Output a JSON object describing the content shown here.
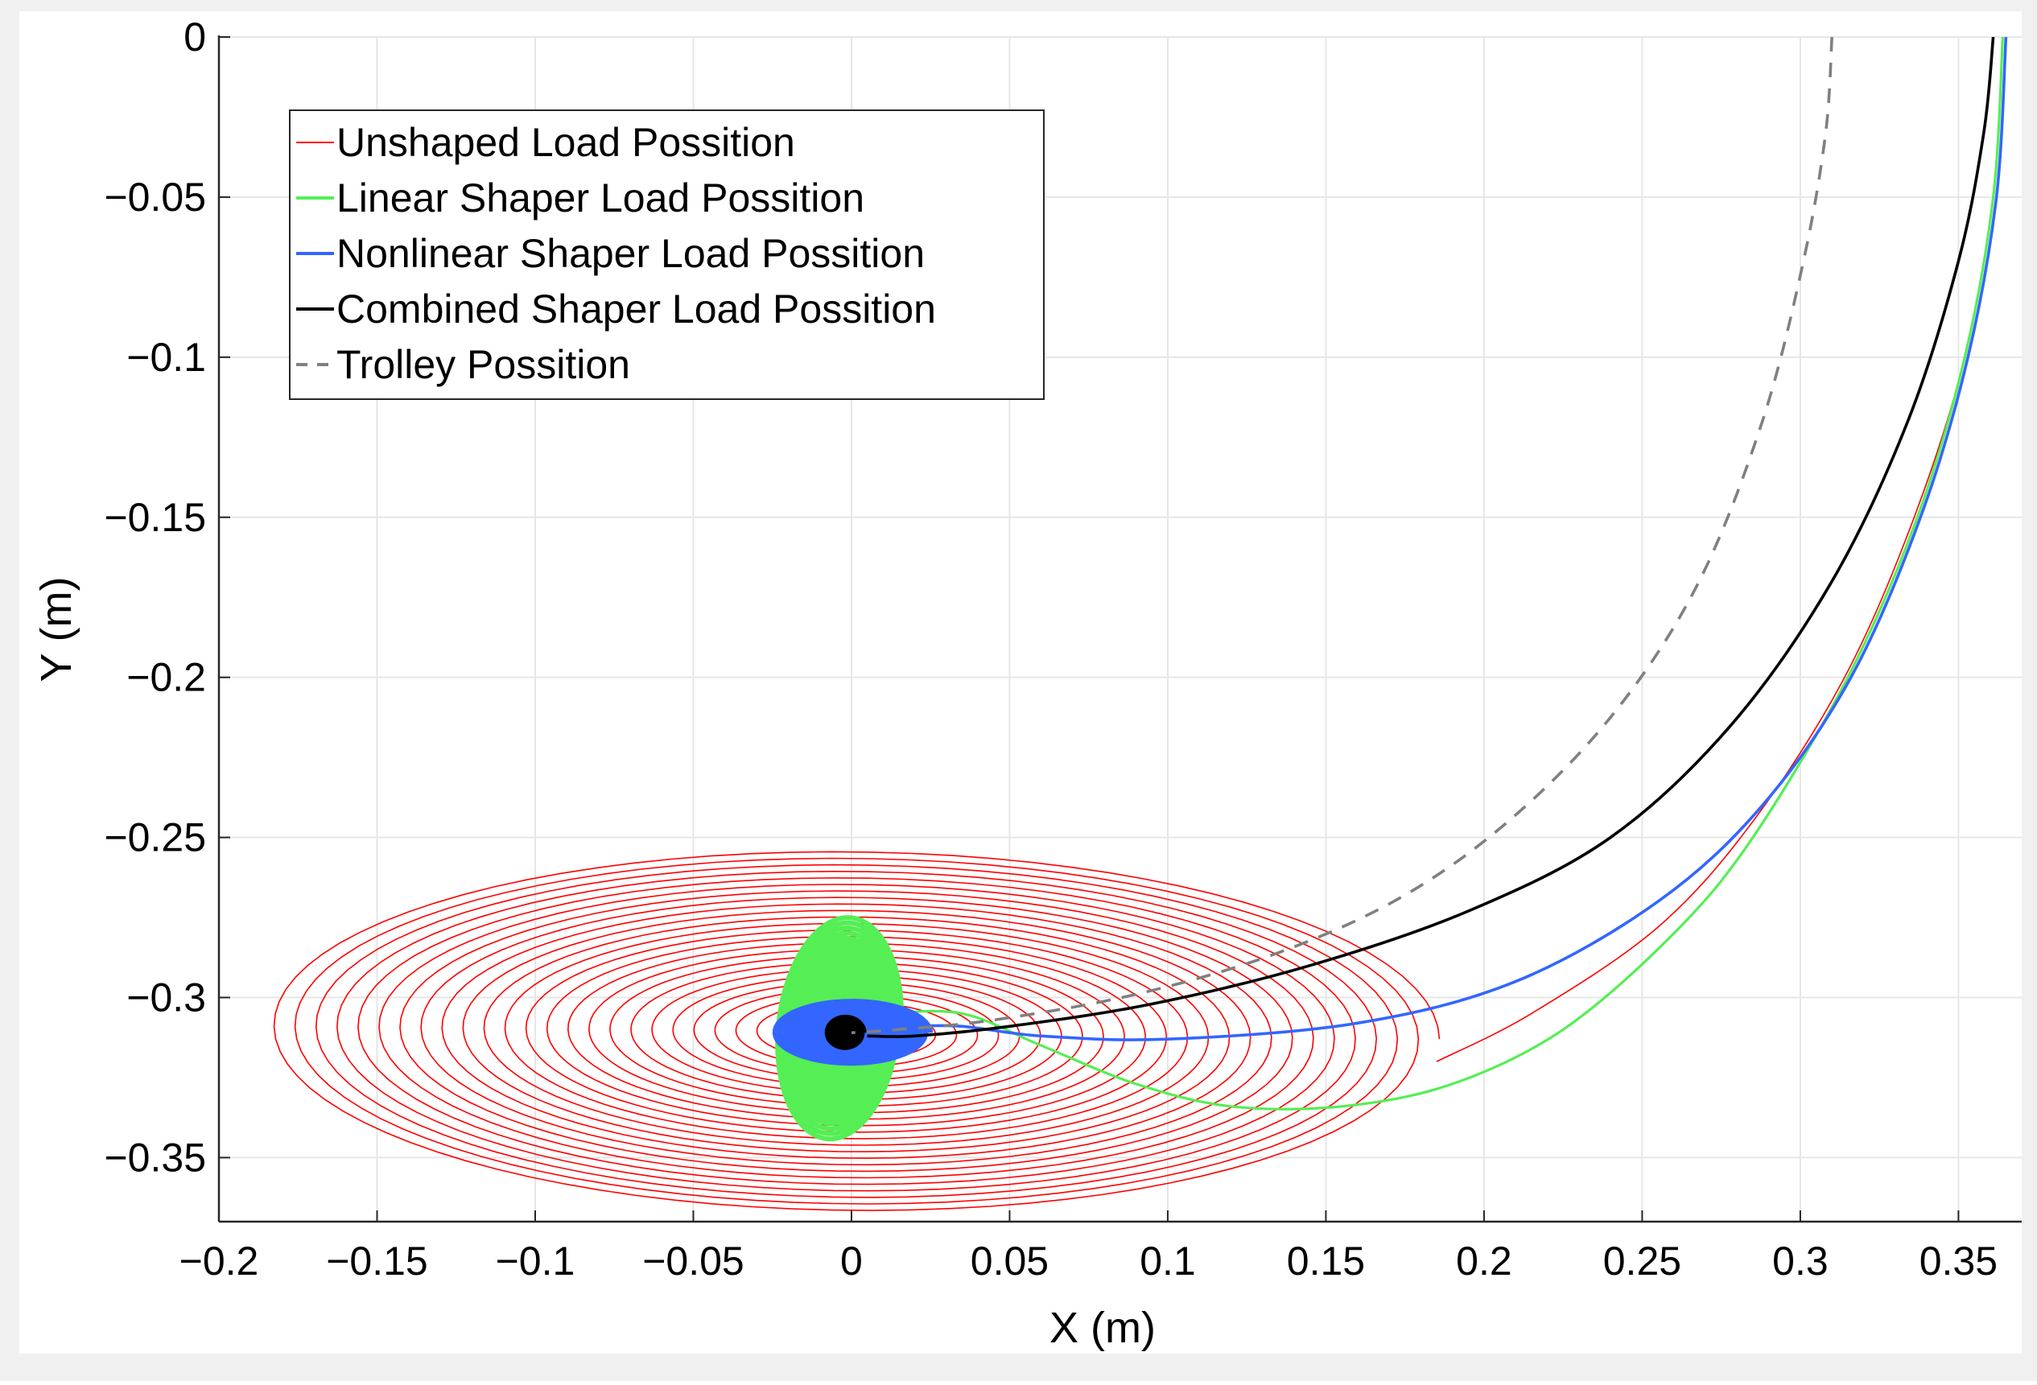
{
  "chart_data": {
    "type": "line",
    "title": "",
    "xlabel": "X (m)",
    "ylabel": "Y (m)",
    "xlim": [
      -0.2,
      0.37
    ],
    "ylim": [
      -0.37,
      0.0
    ],
    "grid": true,
    "legend_position": "top-left",
    "x_ticks": [
      -0.2,
      -0.15,
      -0.1,
      -0.05,
      0,
      0.05,
      0.1,
      0.15,
      0.2,
      0.25,
      0.3,
      0.35
    ],
    "x_tick_labels": [
      "−0.2",
      "−0.15",
      "−0.1",
      "−0.05",
      "0",
      "0.05",
      "0.1",
      "0.15",
      "0.2",
      "0.25",
      "0.3",
      "0.35"
    ],
    "y_ticks": [
      0,
      -0.05,
      -0.1,
      -0.15,
      -0.2,
      -0.25,
      -0.3,
      -0.35
    ],
    "y_tick_labels": [
      "0",
      "−0.05",
      "−0.1",
      "−0.15",
      "−0.2",
      "−0.25",
      "−0.3",
      "−0.35"
    ],
    "series": [
      {
        "name": "Unshaped Load Possition",
        "color": "#ff0000",
        "style": "solid",
        "kind": "spiral",
        "approach_path": [
          [
            0.364,
            0.0
          ],
          [
            0.361,
            -0.05
          ],
          [
            0.352,
            -0.1
          ],
          [
            0.336,
            -0.15
          ],
          [
            0.314,
            -0.2
          ],
          [
            0.285,
            -0.245
          ],
          [
            0.255,
            -0.278
          ],
          [
            0.215,
            -0.305
          ],
          [
            0.185,
            -0.32
          ]
        ],
        "spiral": {
          "center": [
            0.0,
            -0.311
          ],
          "rx_start": 0.186,
          "ry_start": 0.057,
          "loops": 28,
          "tilt_deg": -2
        }
      },
      {
        "name": "Linear Shaper Load Possition",
        "color": "#55ee55",
        "style": "solid",
        "kind": "path_with_oscillation",
        "approach_path": [
          [
            0.364,
            0.0
          ],
          [
            0.361,
            -0.05
          ],
          [
            0.352,
            -0.1
          ],
          [
            0.337,
            -0.15
          ],
          [
            0.315,
            -0.2
          ],
          [
            0.285,
            -0.25
          ],
          [
            0.26,
            -0.28
          ],
          [
            0.225,
            -0.31
          ],
          [
            0.19,
            -0.327
          ],
          [
            0.155,
            -0.334
          ],
          [
            0.12,
            -0.334
          ],
          [
            0.09,
            -0.327
          ],
          [
            0.06,
            -0.315
          ],
          [
            0.035,
            -0.305
          ],
          [
            0.01,
            -0.305
          ]
        ],
        "oscillation": {
          "center": [
            -0.004,
            -0.31
          ],
          "rx_start": 0.02,
          "ry_start": 0.035,
          "loops": 22,
          "tilt_deg": 8
        }
      },
      {
        "name": "Nonlinear Shaper Load Possition",
        "color": "#3366ff",
        "style": "solid",
        "kind": "path_with_oscillation",
        "approach_path": [
          [
            0.365,
            0.0
          ],
          [
            0.362,
            -0.05
          ],
          [
            0.353,
            -0.1
          ],
          [
            0.338,
            -0.15
          ],
          [
            0.316,
            -0.2
          ],
          [
            0.288,
            -0.24
          ],
          [
            0.255,
            -0.27
          ],
          [
            0.21,
            -0.295
          ],
          [
            0.16,
            -0.308
          ],
          [
            0.1,
            -0.313
          ],
          [
            0.06,
            -0.312
          ],
          [
            0.035,
            -0.309
          ],
          [
            0.02,
            -0.309
          ]
        ],
        "oscillation": {
          "center": [
            0.0,
            -0.311
          ],
          "rx_start": 0.025,
          "ry_start": 0.01,
          "loops": 16,
          "tilt_deg": 0
        }
      },
      {
        "name": "Combined Shaper Load Possition",
        "color": "#000000",
        "style": "solid",
        "kind": "path_with_oscillation",
        "approach_path": [
          [
            0.361,
            0.0
          ],
          [
            0.358,
            -0.03
          ],
          [
            0.35,
            -0.07
          ],
          [
            0.334,
            -0.12
          ],
          [
            0.31,
            -0.17
          ],
          [
            0.278,
            -0.215
          ],
          [
            0.24,
            -0.25
          ],
          [
            0.195,
            -0.273
          ],
          [
            0.145,
            -0.29
          ],
          [
            0.095,
            -0.302
          ],
          [
            0.05,
            -0.309
          ],
          [
            0.02,
            -0.312
          ],
          [
            0.005,
            -0.312
          ]
        ],
        "oscillation": {
          "center": [
            -0.002,
            -0.311
          ],
          "rx_start": 0.006,
          "ry_start": 0.005,
          "loops": 10,
          "tilt_deg": 0
        }
      },
      {
        "name": "Trolley Possition",
        "color": "#808080",
        "style": "dashed",
        "kind": "path",
        "approach_path": [
          [
            0.31,
            0.0
          ],
          [
            0.308,
            -0.03
          ],
          [
            0.301,
            -0.07
          ],
          [
            0.288,
            -0.12
          ],
          [
            0.268,
            -0.17
          ],
          [
            0.242,
            -0.21
          ],
          [
            0.21,
            -0.243
          ],
          [
            0.175,
            -0.268
          ],
          [
            0.135,
            -0.286
          ],
          [
            0.09,
            -0.299
          ],
          [
            0.045,
            -0.307
          ],
          [
            0.015,
            -0.31
          ],
          [
            0.0,
            -0.311
          ]
        ]
      }
    ]
  }
}
